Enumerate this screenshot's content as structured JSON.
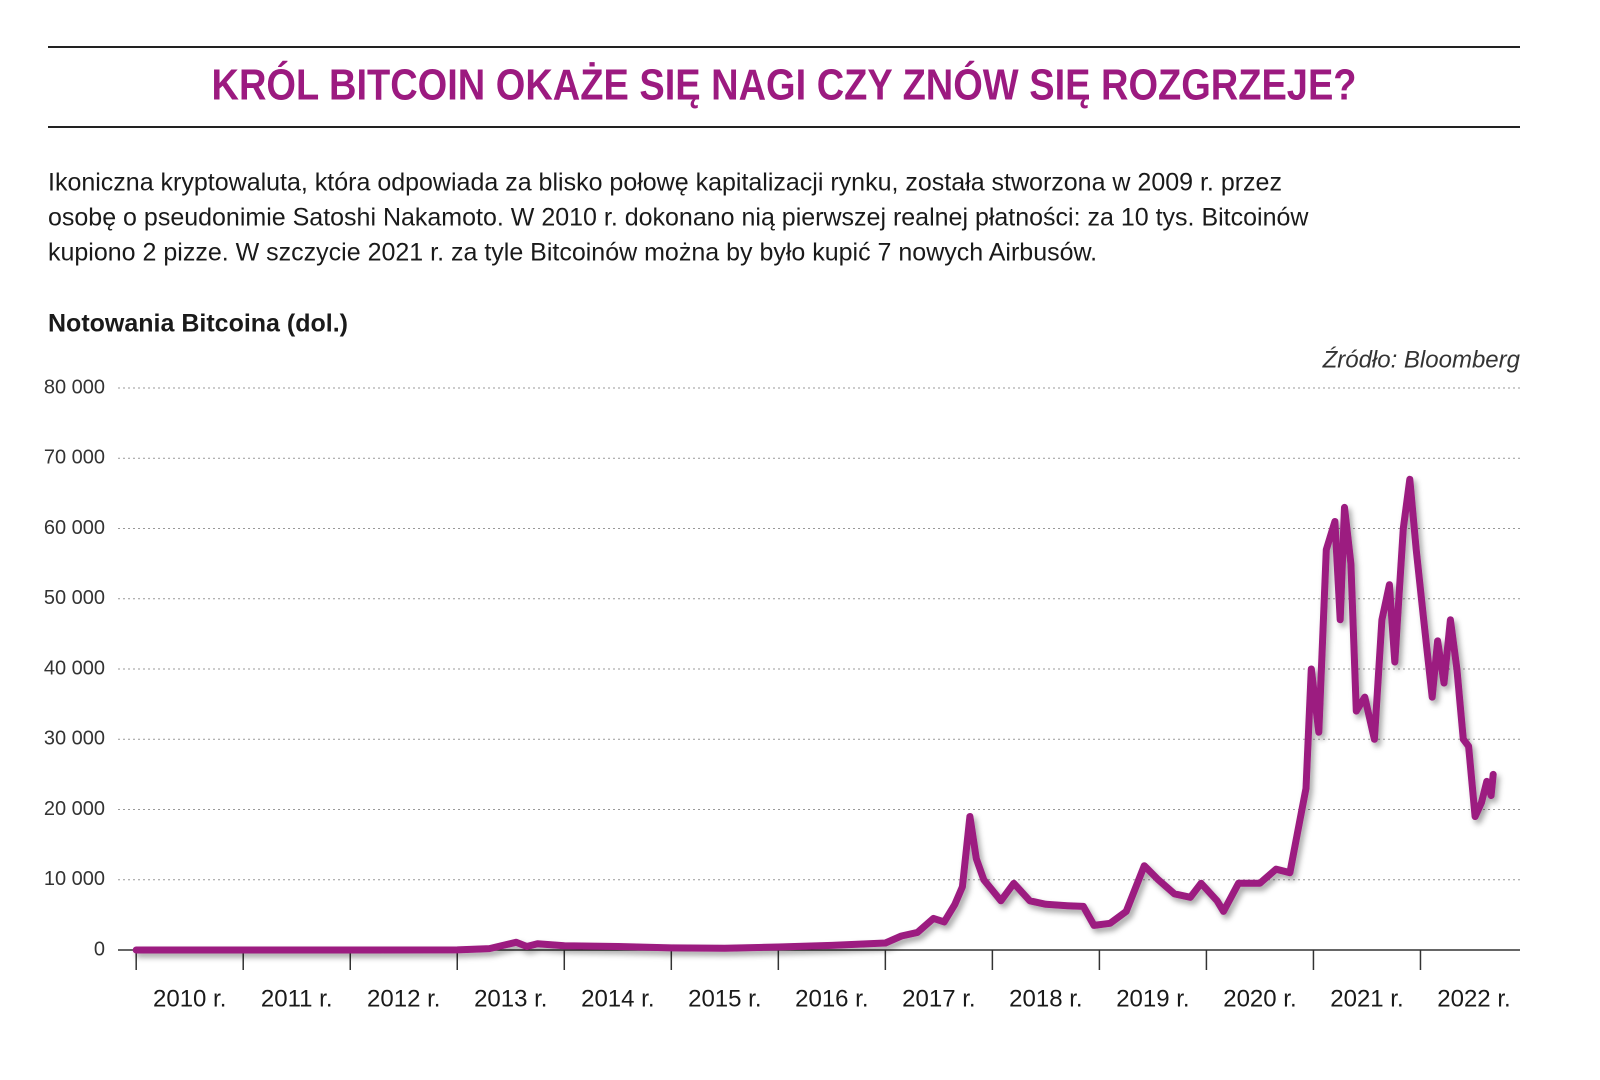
{
  "chart_data": {
    "type": "line",
    "title": "KRÓL BITCOIN OKAŻE SIĘ NAGI CZY ZNÓW SIĘ ROZGRZEJE?",
    "description": [
      "Ikoniczna kryptowaluta, która odpowiada za blisko połowę kapitalizacji rynku, została stworzona w 2009 r. przez",
      "osobę o pseudonimie Satoshi Nakamoto. W 2010 r. dokonano nią pierwszej realnej płatności: za 10 tys. Bitcoinów",
      "kupiono 2 pizze. W szczycie 2021 r. za tyle Bitcoinów można by było kupić 7 nowych Airbusów."
    ],
    "y_label": "Notowania Bitcoina (dol.)",
    "source": "Źródło: Bloomberg",
    "color": "#9c1a80",
    "grid": true,
    "x": [
      2010.0,
      2011.0,
      2012.0,
      2013.0,
      2013.3,
      2013.55,
      2013.65,
      2013.75,
      2014.0,
      2014.5,
      2015.0,
      2015.5,
      2016.0,
      2016.5,
      2017.0,
      2017.15,
      2017.3,
      2017.45,
      2017.55,
      2017.65,
      2017.72,
      2017.79,
      2017.85,
      2017.92,
      2018.0,
      2018.08,
      2018.2,
      2018.35,
      2018.5,
      2018.7,
      2018.85,
      2018.95,
      2019.1,
      2019.25,
      2019.42,
      2019.55,
      2019.7,
      2019.85,
      2019.95,
      2020.1,
      2020.16,
      2020.3,
      2020.5,
      2020.65,
      2020.78,
      2020.88,
      2020.93,
      2020.98,
      2021.05,
      2021.12,
      2021.2,
      2021.25,
      2021.29,
      2021.35,
      2021.4,
      2021.48,
      2021.57,
      2021.64,
      2021.71,
      2021.76,
      2021.84,
      2021.9,
      2021.96,
      2022.03,
      2022.11,
      2022.16,
      2022.22,
      2022.28,
      2022.34,
      2022.4,
      2022.45,
      2022.51,
      2022.57,
      2022.62,
      2022.66,
      2022.68
    ],
    "values": [
      0,
      0.3,
      5,
      13,
      200,
      1100,
      500,
      900,
      600,
      500,
      300,
      250,
      430,
      650,
      1000,
      2000,
      2500,
      4500,
      4000,
      6500,
      9000,
      19000,
      13000,
      10000,
      8500,
      7000,
      9500,
      7000,
      6500,
      6300,
      6200,
      3500,
      3800,
      5500,
      12000,
      10000,
      8000,
      7500,
      9500,
      7000,
      5500,
      9500,
      9500,
      11500,
      11000,
      19000,
      23000,
      40000,
      31000,
      57000,
      61000,
      47000,
      63000,
      55000,
      34000,
      36000,
      30000,
      47000,
      52000,
      41000,
      60000,
      67000,
      57000,
      47000,
      36000,
      44000,
      38000,
      47000,
      40000,
      30000,
      29000,
      19000,
      21000,
      24000,
      22000,
      25000
    ],
    "xlim": [
      2009.83,
      2022.93
    ],
    "xticks": [
      {
        "value": 2010,
        "label": "2010 r."
      },
      {
        "value": 2011,
        "label": "2011 r."
      },
      {
        "value": 2012,
        "label": "2012 r."
      },
      {
        "value": 2013,
        "label": "2013 r."
      },
      {
        "value": 2014,
        "label": "2014 r."
      },
      {
        "value": 2015,
        "label": "2015 r."
      },
      {
        "value": 2016,
        "label": "2016 r."
      },
      {
        "value": 2017,
        "label": "2017 r."
      },
      {
        "value": 2018,
        "label": "2018 r."
      },
      {
        "value": 2019,
        "label": "2019 r."
      },
      {
        "value": 2020,
        "label": "2020 r."
      },
      {
        "value": 2021,
        "label": "2021 r."
      },
      {
        "value": 2022,
        "label": "2022 r."
      }
    ],
    "ylim": [
      0,
      80000
    ],
    "yticks": [
      0,
      {
        "value": 10000,
        "label": "10 000"
      },
      {
        "value": 20000,
        "label": "20 000"
      },
      {
        "value": 30000,
        "label": "30 000"
      },
      {
        "value": 40000,
        "label": "40 000"
      },
      {
        "value": 50000,
        "label": "50 000"
      },
      {
        "value": 60000,
        "label": "60 000"
      },
      {
        "value": 70000,
        "label": "70 000"
      },
      {
        "value": 80000,
        "label": "80 000"
      }
    ]
  }
}
